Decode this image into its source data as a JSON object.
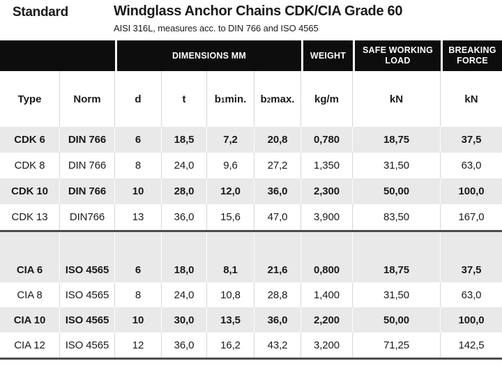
{
  "page": {
    "label": "Standard",
    "title": "Windglass Anchor Chains CDK/CIA Grade 60",
    "subtitle": "AISI 316L, measures acc. to DIN 766 and ISO 4565"
  },
  "colors": {
    "group_header_bg": "#0d0d0d",
    "group_header_text": "#ffffff",
    "stripe_row_bg": "#e9e9e9",
    "rule": "#4b4b4b"
  },
  "table": {
    "groups": [
      {
        "label": ""
      },
      {
        "label": "DIMENSIONS MM"
      },
      {
        "label": "WEIGHT"
      },
      {
        "label": "SAFE WORKING LOAD"
      },
      {
        "label": "BREAKING FORCE"
      }
    ],
    "columns": [
      {
        "text": "Type"
      },
      {
        "text": "Norm"
      },
      {
        "text": "d"
      },
      {
        "text": "t"
      },
      {
        "base": "b",
        "sub": "1",
        "rest": "min."
      },
      {
        "base": "b",
        "sub": "2",
        "rest": "max."
      },
      {
        "text": "kg/m"
      },
      {
        "text": "kN"
      },
      {
        "text": "kN"
      }
    ],
    "sections": [
      {
        "name": "CDK",
        "rows": [
          {
            "cells": [
              "CDK 6",
              "DIN 766",
              "6",
              "18,5",
              "7,2",
              "20,8",
              "0,780",
              "18,75",
              "37,5"
            ],
            "emphasis": true
          },
          {
            "cells": [
              "CDK 8",
              "DIN 766",
              "8",
              "24,0",
              "9,6",
              "27,2",
              "1,350",
              "31,50",
              "63,0"
            ],
            "emphasis": false
          },
          {
            "cells": [
              "CDK 10",
              "DIN 766",
              "10",
              "28,0",
              "12,0",
              "36,0",
              "2,300",
              "50,00",
              "100,0"
            ],
            "emphasis": true
          },
          {
            "cells": [
              "CDK 13",
              "DIN766",
              "13",
              "36,0",
              "15,6",
              "47,0",
              "3,900",
              "83,50",
              "167,0"
            ],
            "emphasis": false
          }
        ]
      },
      {
        "name": "CIA",
        "rows": [
          {
            "cells": [
              "CIA 6",
              "ISO 4565",
              "6",
              "18,0",
              "8,1",
              "21,6",
              "0,800",
              "18,75",
              "37,5"
            ],
            "emphasis": true
          },
          {
            "cells": [
              "CIA 8",
              "ISO 4565",
              "8",
              "24,0",
              "10,8",
              "28,8",
              "1,400",
              "31,50",
              "63,0"
            ],
            "emphasis": false
          },
          {
            "cells": [
              "CIA 10",
              "ISO 4565",
              "10",
              "30,0",
              "13,5",
              "36,0",
              "2,200",
              "50,00",
              "100,0"
            ],
            "emphasis": true
          },
          {
            "cells": [
              "CIA 12",
              "ISO 4565",
              "12",
              "36,0",
              "16,2",
              "43,2",
              "3,200",
              "71,25",
              "142,5"
            ],
            "emphasis": false
          }
        ]
      }
    ]
  }
}
